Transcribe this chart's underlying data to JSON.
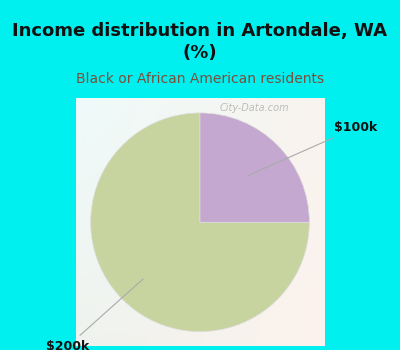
{
  "title": "Income distribution in Artondale, WA\n(%)",
  "subtitle": "Black or African American residents",
  "slices": [
    75,
    25
  ],
  "labels": [
    "$200k",
    "$100k"
  ],
  "colors": [
    "#c8d4a0",
    "#c4a8d0"
  ],
  "startangle": 90,
  "bg_cyan": "#00f0f0",
  "bg_chart_color1": "#ffffff",
  "bg_chart_color2": "#b8ddd0",
  "title_fontsize": 13,
  "subtitle_fontsize": 10,
  "annotation_fontsize": 9,
  "watermark": "City-Data.com"
}
